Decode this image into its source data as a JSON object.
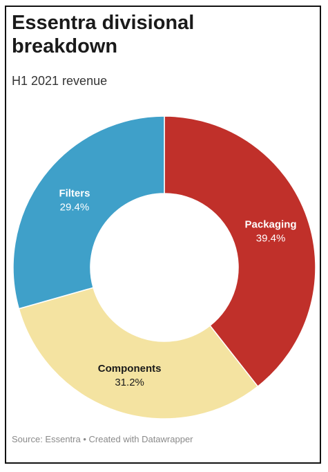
{
  "chart_data": {
    "type": "pie",
    "title": "Essentra divisional breakdown",
    "subtitle": "H1 2021 revenue",
    "donut": true,
    "slices": [
      {
        "name": "Packaging",
        "value": 39.4,
        "value_label": "39.4%",
        "color": "#c0302a",
        "label_color": "#ffffff"
      },
      {
        "name": "Components",
        "value": 31.2,
        "value_label": "31.2%",
        "color": "#f4e3a1",
        "label_color": "#1a1a1a"
      },
      {
        "name": "Filters",
        "value": 29.4,
        "value_label": "29.4%",
        "color": "#3fa0c9",
        "label_color": "#ffffff"
      }
    ],
    "start_angle": "12 o'clock",
    "direction": "clockwise"
  },
  "footer": {
    "source": "Source: Essentra • Created with Datawrapper"
  }
}
